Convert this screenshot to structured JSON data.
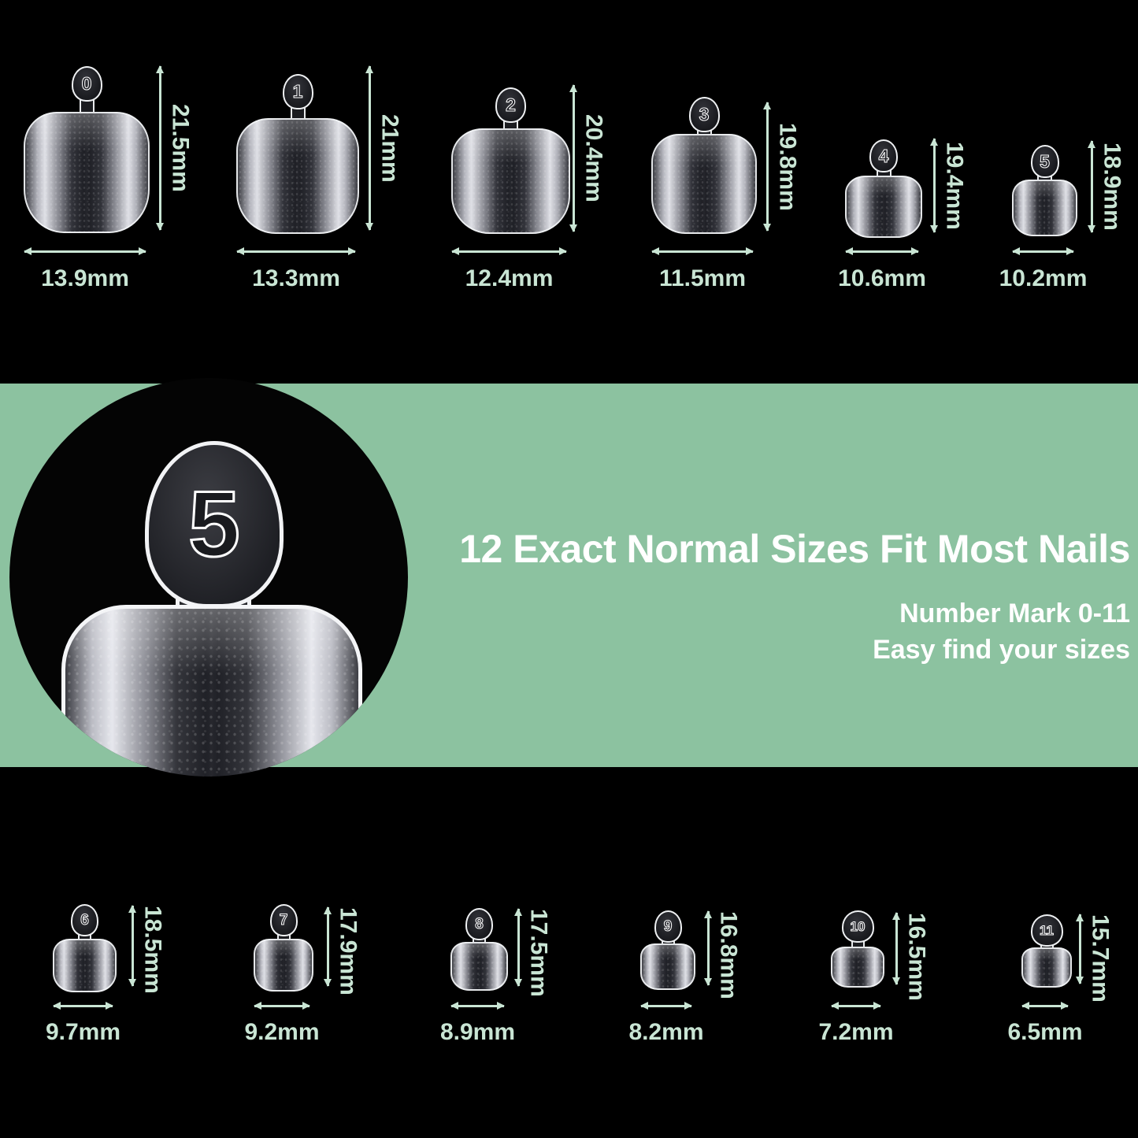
{
  "info_band": {
    "title": "12 Exact Normal Sizes Fit Most Nails",
    "subtitle_lines": [
      "Number Mark 0-11",
      "Easy find your sizes"
    ],
    "zoom_badge_number": "5"
  },
  "sizes": [
    {
      "label": "0",
      "width": "13.9mm",
      "height": "21.5mm"
    },
    {
      "label": "1",
      "width": "13.3mm",
      "height": "21mm"
    },
    {
      "label": "2",
      "width": "12.4mm",
      "height": "20.4mm"
    },
    {
      "label": "3",
      "width": "11.5mm",
      "height": "19.8mm"
    },
    {
      "label": "4",
      "width": "10.6mm",
      "height": "19.4mm"
    },
    {
      "label": "5",
      "width": "10.2mm",
      "height": "18.9mm"
    },
    {
      "label": "6",
      "width": "9.7mm",
      "height": "18.5mm"
    },
    {
      "label": "7",
      "width": "9.2mm",
      "height": "17.9mm"
    },
    {
      "label": "8",
      "width": "8.9mm",
      "height": "17.5mm"
    },
    {
      "label": "9",
      "width": "8.2mm",
      "height": "16.8mm"
    },
    {
      "label": "10",
      "width": "7.2mm",
      "height": "16.5mm"
    },
    {
      "label": "11",
      "width": "6.5mm",
      "height": "15.7mm"
    }
  ],
  "colors": {
    "background": "#000000",
    "band_green": "#8cc2a0",
    "measure_text": "#c9e5d4",
    "title_text": "#ffffff"
  }
}
